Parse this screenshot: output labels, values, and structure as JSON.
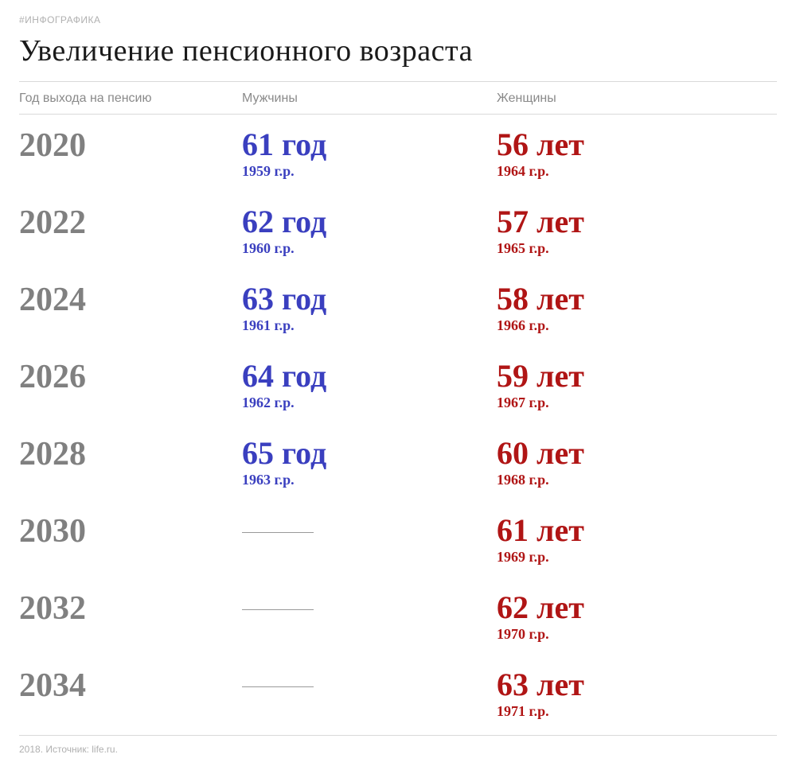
{
  "tag": "#ИНФОГРАФИКА",
  "title": "Увеличение пенсионного возраста",
  "columns": {
    "year": "Год выхода на пенсию",
    "men": "Мужчины",
    "women": "Женщины"
  },
  "colors": {
    "men": "#3a3fbf",
    "women": "#b01515",
    "year": "#808080",
    "header_text": "#8a8a8a",
    "rule": "#d9d9d9",
    "tag": "#b0b0b0",
    "background": "#ffffff"
  },
  "typography": {
    "title_fontsize": 38,
    "year_fontsize": 42,
    "age_fontsize": 40,
    "birth_fontsize": 18,
    "header_fontsize": 16,
    "footer_fontsize": 12
  },
  "rows": [
    {
      "year": "2020",
      "men_age": "61 год",
      "men_birth": "1959 г.р.",
      "women_age": "56 лет",
      "women_birth": "1964 г.р."
    },
    {
      "year": "2022",
      "men_age": "62 год",
      "men_birth": "1960 г.р.",
      "women_age": "57 лет",
      "women_birth": "1965 г.р."
    },
    {
      "year": "2024",
      "men_age": "63 год",
      "men_birth": "1961 г.р.",
      "women_age": "58 лет",
      "women_birth": "1966 г.р."
    },
    {
      "year": "2026",
      "men_age": "64 год",
      "men_birth": "1962 г.р.",
      "women_age": "59 лет",
      "women_birth": "1967 г.р."
    },
    {
      "year": "2028",
      "men_age": "65 год",
      "men_birth": "1963 г.р.",
      "women_age": "60 лет",
      "women_birth": "1968 г.р."
    },
    {
      "year": "2030",
      "men_age": "",
      "men_birth": "",
      "women_age": "61 лет",
      "women_birth": "1969 г.р."
    },
    {
      "year": "2032",
      "men_age": "",
      "men_birth": "",
      "women_age": "62 лет",
      "women_birth": "1970 г.р."
    },
    {
      "year": "2034",
      "men_age": "",
      "men_birth": "",
      "women_age": "63 лет",
      "women_birth": "1971 г.р."
    }
  ],
  "footer": "2018. Источник: life.ru."
}
